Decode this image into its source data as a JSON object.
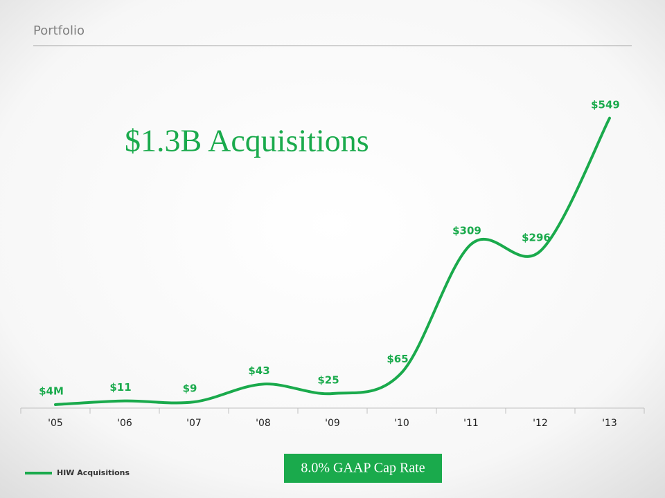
{
  "chart_data": {
    "type": "line",
    "section": "Portfolio",
    "title": "$1.3B Acquisitions",
    "annotation": "8.0% GAAP Cap Rate",
    "categories": [
      "'05",
      "'06",
      "'07",
      "'08",
      "'09",
      "'10",
      "'11",
      "'12",
      "'13"
    ],
    "series": [
      {
        "name": "HIW Acquisitions",
        "color": "#1aaa4c",
        "values": [
          4,
          11,
          9,
          43,
          25,
          65,
          309,
          296,
          549
        ],
        "value_labels": [
          "$4M",
          "$11",
          "$9",
          "$43",
          "$25",
          "$65",
          "$309",
          "$296",
          "$549"
        ]
      }
    ],
    "ylim": [
      0,
      600
    ],
    "legend": "bottom-left"
  }
}
